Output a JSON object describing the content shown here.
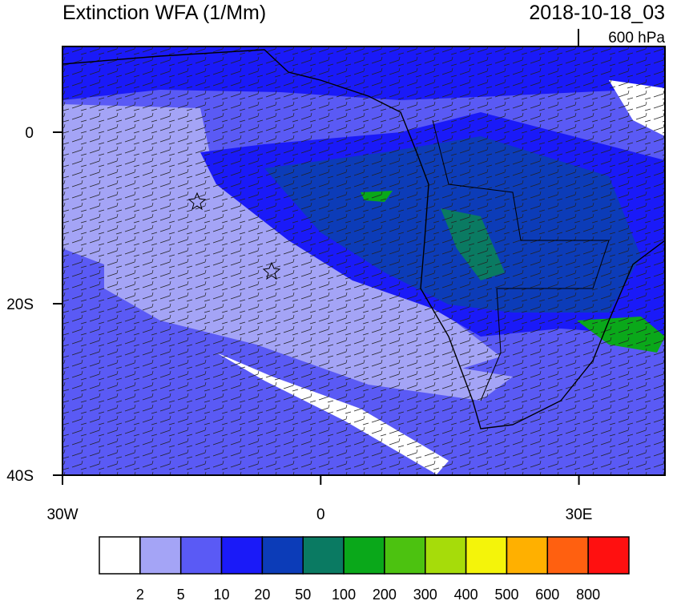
{
  "title": "Extinction WFA (1/Mm)",
  "time": "2018-10-18_03",
  "level": "600 hPa",
  "map": {
    "xlim": [
      -30,
      40
    ],
    "ylim": [
      -40,
      10
    ],
    "xticks": [
      {
        "value": -30,
        "label": "30W"
      },
      0,
      {
        "value": 30,
        "label": "30E"
      }
    ],
    "yticks": [
      0,
      {
        "value": -20,
        "label": "20S"
      },
      {
        "value": -40,
        "label": "40S"
      }
    ]
  },
  "colorbar": {
    "levels": [
      2,
      5,
      10,
      20,
      50,
      100,
      200,
      300,
      400,
      500,
      600,
      800
    ],
    "colors": [
      "#ffffff",
      "#a4a4f6",
      "#5a5af5",
      "#1a1af8",
      "#0c3cb8",
      "#0a7a62",
      "#0aa81a",
      "#4cc210",
      "#a6dc0a",
      "#f4f40a",
      "#ffb000",
      "#ff6010",
      "#ff1010"
    ]
  }
}
